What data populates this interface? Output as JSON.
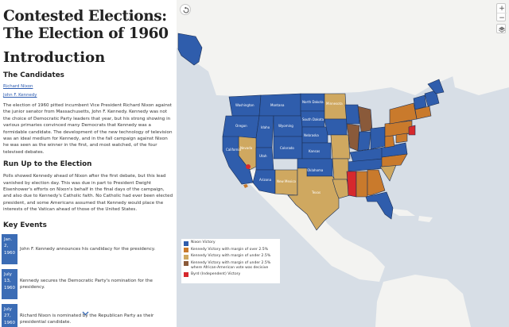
{
  "page": {
    "title": "Contested Elections: The Election of 1960",
    "intro_heading": "Introduction"
  },
  "candidates": {
    "heading": "The Candidates",
    "links": [
      "Richard Nixon",
      "John F. Kennedy"
    ],
    "paragraph": "The election of 1960 pitted incumbent Vice President Richard Nixon against the junior senator from Massachusetts, John F. Kennedy. Kennedy was not the choice of Democratic Party leaders that year, but his strong showing in various primaries convinced many Democrats that Kennedy was a formidable candidate. The development of the new technology of television was an ideal medium for Kennedy, and in the fall campaign against Nixon he was seen as the winner in the first, and most watched, of the four televised debates."
  },
  "runup": {
    "heading": "Run Up to the Election",
    "paragraph": "Polls showed Kennedy ahead of Nixon after the first debate, but this lead vanished by election day. This was due in part to President Dwight Eisenhower's efforts on Nixon's behalf in the final days of the campaign, and also due to Kennedy's Catholic faith. No Catholic had ever been elected president, and some Americans assumed that Kennedy would place the interests of the Vatican ahead of those of the United States."
  },
  "events": {
    "heading": "Key Events",
    "items": [
      {
        "date": "Jan. 2, 1960",
        "text": "John F. Kennedy announces his candidacy for the presidency."
      },
      {
        "date": "July 13, 1960",
        "text": "Kennedy secures the Democratic Party's nomination for the presidency."
      },
      {
        "date": "July 27, 1960",
        "text": "Richard Nixon is nominated by the Republican Party as their presidential candidate."
      }
    ]
  },
  "map": {
    "colors": {
      "water": "#d7dee6",
      "land": "#f3f3f1",
      "nixon": "#2f5dac",
      "kennedy_over": "#c97a2c",
      "kennedy_under": "#cfa860",
      "kennedy_aa": "#8a5a3a",
      "byrd": "#d6282d"
    },
    "controls": {
      "zoom_in": "+",
      "zoom_out": "−"
    },
    "states": [
      "Washington",
      "Montana",
      "North Dakota",
      "Minnesota",
      "Oregon",
      "Idaho",
      "South Dakota",
      "Wyoming",
      "Iowa",
      "Nebraska",
      "Nevada",
      "Utah",
      "Colorado",
      "California",
      "Kansas",
      "Arizona",
      "Oklahoma",
      "New Mexico",
      "Texas"
    ]
  },
  "legend": {
    "items": [
      {
        "label": "Nixon Victory",
        "color": "#2f5dac"
      },
      {
        "label": "Kennedy Victory with margin of over 2.5%",
        "color": "#c97a2c"
      },
      {
        "label": "Kennedy Victory with margin of under 2.5%",
        "color": "#cfa860"
      },
      {
        "label": "Kennedy Victory with margin of under 2.5% where African-American vote was decisive",
        "color": "#8a5a3a"
      },
      {
        "label": "Byrd (Independent) Victory",
        "color": "#d6282d"
      }
    ]
  }
}
